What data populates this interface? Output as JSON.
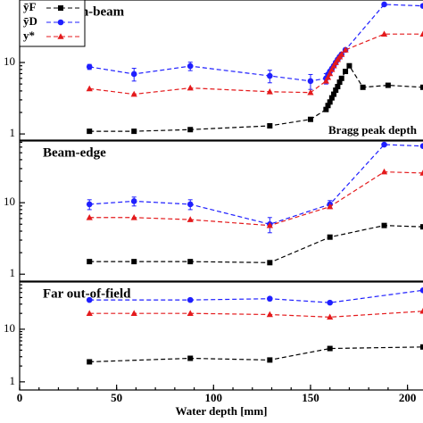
{
  "chart_data": [
    {
      "type": "line",
      "title": "In-beam",
      "annotation": "Bragg peak depth",
      "log_y": true,
      "legend": "upper left",
      "xlim": [
        0,
        208
      ],
      "ylim": [
        0.82,
        75
      ],
      "yticks": [
        1,
        10
      ],
      "series": [
        {
          "name": "ȳF",
          "color": "#000000",
          "marker": "square",
          "x": [
            36,
            59,
            88,
            129,
            150,
            158,
            159,
            160,
            161,
            162,
            163,
            164,
            165,
            166,
            168,
            170,
            177,
            190,
            208
          ],
          "values": [
            1.09,
            1.09,
            1.15,
            1.3,
            1.6,
            2.2,
            2.5,
            2.8,
            3.2,
            3.6,
            4.1,
            4.6,
            5.3,
            6,
            7.5,
            9,
            4.5,
            4.8,
            4.5
          ]
        },
        {
          "name": "ȳD",
          "color": "#1f1fff",
          "marker": "circle",
          "x": [
            36,
            59,
            88,
            129,
            150,
            158,
            159,
            160,
            161,
            162,
            163,
            164,
            165,
            166,
            168,
            188,
            208
          ],
          "values": [
            8.7,
            6.9,
            8.9,
            6.5,
            5.5,
            6,
            6.8,
            7.5,
            8.2,
            9,
            10,
            11,
            12,
            13,
            15,
            65,
            62
          ],
          "errors": [
            0.7,
            1.4,
            1.2,
            1.3,
            1.3,
            1,
            null,
            null,
            null,
            null,
            null,
            null,
            null,
            null,
            null,
            null,
            null
          ]
        },
        {
          "name": "y*",
          "color": "#e41a1c",
          "marker": "triangle",
          "x": [
            36,
            59,
            88,
            129,
            150,
            158,
            159,
            160,
            161,
            162,
            163,
            164,
            165,
            166,
            168,
            188,
            208
          ],
          "values": [
            4.3,
            3.6,
            4.4,
            3.9,
            3.8,
            5.5,
            6.2,
            7,
            8,
            9,
            10,
            11,
            12,
            13,
            15,
            25,
            25
          ]
        }
      ]
    },
    {
      "type": "line",
      "title": "Beam-edge",
      "log_y": true,
      "xlim": [
        0,
        208
      ],
      "ylim": [
        0.8,
        73
      ],
      "yticks": [
        1,
        10
      ],
      "series": [
        {
          "name": "ȳF",
          "color": "#000000",
          "marker": "square",
          "x": [
            36,
            59,
            88,
            129,
            160,
            188,
            208
          ],
          "values": [
            1.5,
            1.5,
            1.5,
            1.45,
            3.3,
            4.8,
            4.6
          ]
        },
        {
          "name": "ȳD",
          "color": "#1f1fff",
          "marker": "circle",
          "x": [
            36,
            59,
            88,
            129,
            160,
            188,
            208
          ],
          "values": [
            9.5,
            10.5,
            9.5,
            5,
            9.5,
            65,
            62
          ],
          "errors": [
            1.5,
            1.5,
            1.5,
            1.2,
            1.2,
            null,
            null
          ]
        },
        {
          "name": "y*",
          "color": "#e41a1c",
          "marker": "triangle",
          "x": [
            36,
            59,
            88,
            129,
            160,
            188,
            208
          ],
          "values": [
            6.2,
            6.2,
            5.8,
            4.8,
            8.8,
            27,
            26
          ]
        }
      ]
    },
    {
      "type": "line",
      "title": "Far out-of-field",
      "log_y": true,
      "xlabel": "Water depth [mm]",
      "xlim": [
        0,
        208
      ],
      "ylim": [
        0.7,
        79
      ],
      "yticks": [
        1,
        10
      ],
      "xticks": [
        0,
        50,
        100,
        150,
        200
      ],
      "series": [
        {
          "name": "ȳF",
          "color": "#000000",
          "marker": "square",
          "x": [
            36,
            88,
            129,
            160,
            208
          ],
          "values": [
            2.4,
            2.8,
            2.6,
            4.3,
            4.6
          ]
        },
        {
          "name": "ȳD",
          "color": "#1f1fff",
          "marker": "circle",
          "x": [
            36,
            88,
            129,
            160,
            208
          ],
          "values": [
            36,
            36,
            38,
            32,
            55
          ]
        },
        {
          "name": "y*",
          "color": "#e41a1c",
          "marker": "triangle",
          "x": [
            36,
            59,
            88,
            129,
            160,
            208
          ],
          "values": [
            20,
            20,
            20,
            19,
            17,
            22
          ]
        }
      ]
    }
  ]
}
